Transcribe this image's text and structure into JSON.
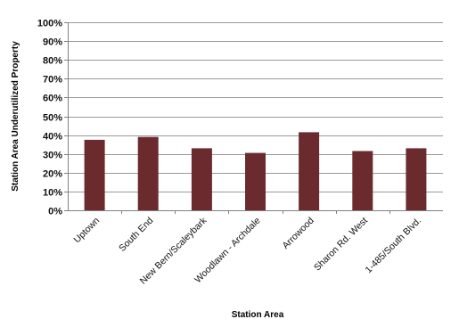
{
  "chart_data": {
    "type": "bar",
    "title": "",
    "xlabel": "Station Area",
    "ylabel": "Station Area Underutilized Property",
    "categories": [
      "Uptown",
      "South End",
      "New Bern/Scaleybark",
      "Woodlawn - Archdale",
      "Arrowood",
      "Sharon Rd. West",
      "1-485/South Blvd."
    ],
    "values": [
      37.5,
      39,
      33,
      30.5,
      41.5,
      31.5,
      33
    ],
    "ylim": [
      0,
      100
    ],
    "ytick_values": [
      0,
      10,
      20,
      30,
      40,
      50,
      60,
      70,
      80,
      90,
      100
    ],
    "yticks": [
      "0%",
      "10%",
      "20%",
      "30%",
      "40%",
      "50%",
      "60%",
      "70%",
      "80%",
      "90%",
      "100%"
    ],
    "grid": true,
    "legend": "none",
    "bar_color": "#6b2b2e"
  }
}
